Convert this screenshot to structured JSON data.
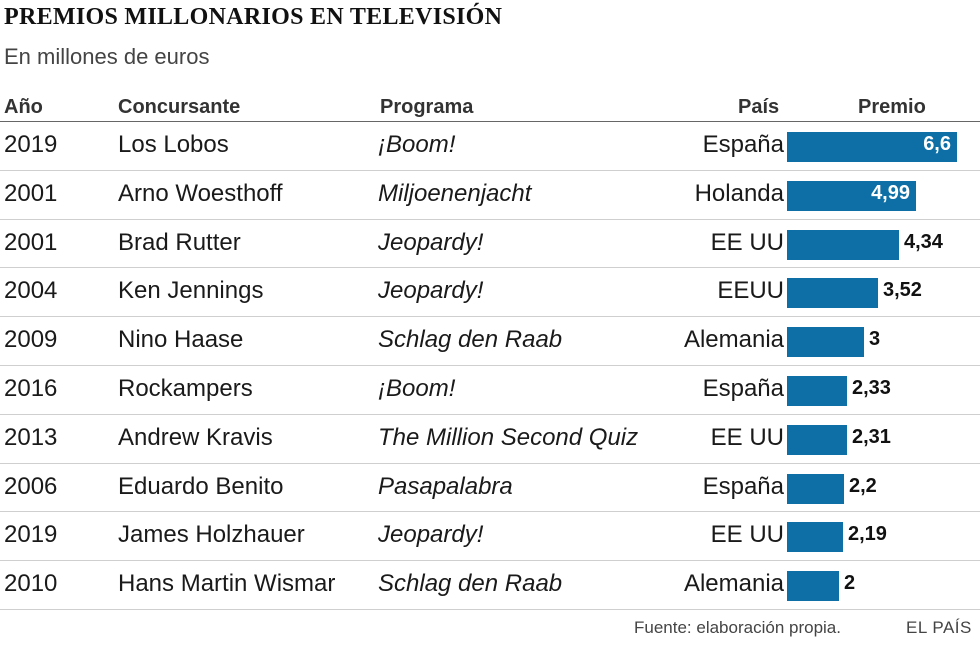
{
  "header": {
    "title": "PREMIOS MILLONARIOS EN TELEVISIÓN",
    "subtitle": "En millones de euros"
  },
  "columns": {
    "year": "Año",
    "contestant": "Concursante",
    "program": "Programa",
    "country": "País",
    "prize": "Premio"
  },
  "footer": {
    "source": "Fuente: elaboración propia.",
    "brand": "EL PAÍS"
  },
  "colors": {
    "bar": "#0d6fa6"
  },
  "chart_data": {
    "type": "bar",
    "orientation": "horizontal",
    "title": "PREMIOS MILLONARIOS EN TELEVISIÓN",
    "subtitle": "En millones de euros",
    "xlim": [
      0,
      6.6
    ],
    "categories": [
      "Los Lobos",
      "Arno Woesthoff",
      "Brad Rutter",
      "Ken Jennings",
      "Nino Haase",
      "Rockampers",
      "Andrew Kravis",
      "Eduardo Benito",
      "James Holzhauer",
      "Hans Martin Wismar"
    ],
    "values": [
      6.6,
      4.99,
      4.34,
      3.52,
      3,
      2.33,
      2.31,
      2.2,
      2.19,
      2
    ],
    "rows": [
      {
        "year": "2019",
        "contestant": "Los Lobos",
        "program": "¡Boom!",
        "country": "España",
        "label": "6,6",
        "value": 6.6
      },
      {
        "year": "2001",
        "contestant": "Arno Woesthoff",
        "program": "Miljoenenjacht",
        "country": "Holanda",
        "label": "4,99",
        "value": 4.99
      },
      {
        "year": "2001",
        "contestant": "Brad Rutter",
        "program": "Jeopardy!",
        "country": "EE UU",
        "label": "4,34",
        "value": 4.34
      },
      {
        "year": "2004",
        "contestant": "Ken Jennings",
        "program": "Jeopardy!",
        "country": "EEUU",
        "label": "3,52",
        "value": 3.52
      },
      {
        "year": "2009",
        "contestant": "Nino Haase",
        "program": "Schlag den Raab",
        "country": "Alemania",
        "label": "3",
        "value": 3
      },
      {
        "year": "2016",
        "contestant": "Rockampers",
        "program": "¡Boom!",
        "country": "España",
        "label": "2,33",
        "value": 2.33
      },
      {
        "year": "2013",
        "contestant": "Andrew Kravis",
        "program": "The Million Second Quiz",
        "country": "EE UU",
        "label": "2,31",
        "value": 2.31
      },
      {
        "year": "2006",
        "contestant": "Eduardo Benito",
        "program": "Pasapalabra",
        "country": "España",
        "label": "2,2",
        "value": 2.2
      },
      {
        "year": "2019",
        "contestant": "James Holzhauer",
        "program": "Jeopardy!",
        "country": "EE UU",
        "label": "2,19",
        "value": 2.19
      },
      {
        "year": "2010",
        "contestant": "Hans Martin Wismar",
        "program": "Schlag den Raab",
        "country": "Alemania",
        "label": "2",
        "value": 2
      }
    ]
  }
}
